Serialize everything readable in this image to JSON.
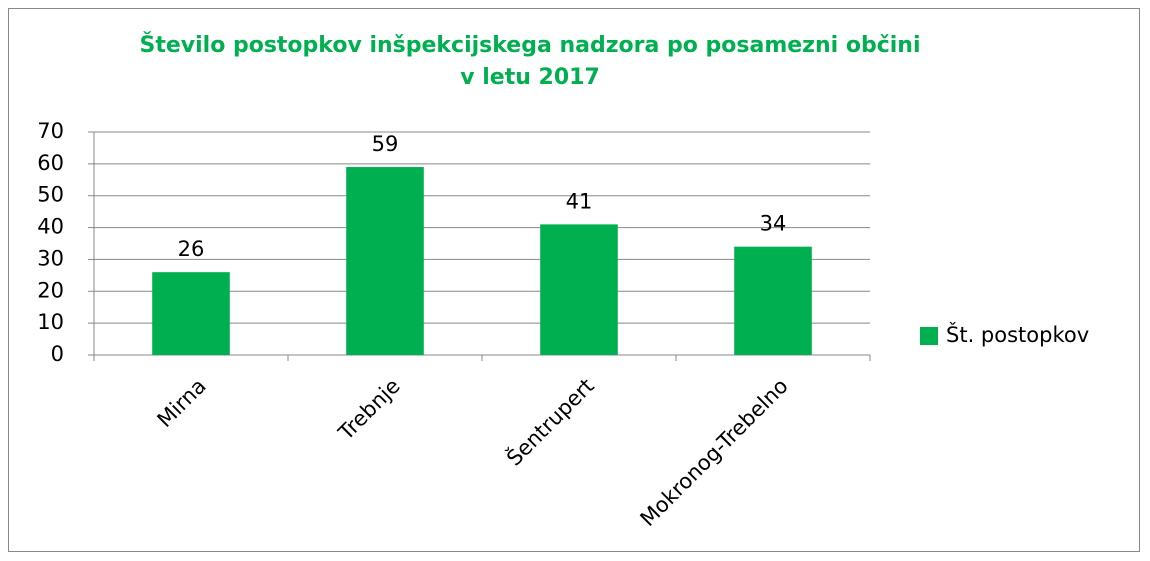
{
  "chart_data": {
    "type": "bar",
    "title": "Število postopkov inšpekcijskega nadzora po posamezni občini v letu 2017",
    "categories": [
      "Mirna",
      "Trebnje",
      "Šentrupert",
      "Mokronog-Trebelno"
    ],
    "series": [
      {
        "name": "Št. postopkov",
        "color": "#00b050",
        "values": [
          26,
          59,
          41,
          34
        ]
      }
    ],
    "ylim": [
      0,
      70
    ],
    "yticks": [
      0,
      10,
      20,
      30,
      40,
      50,
      60,
      70
    ],
    "grid": true,
    "legend": "right"
  }
}
